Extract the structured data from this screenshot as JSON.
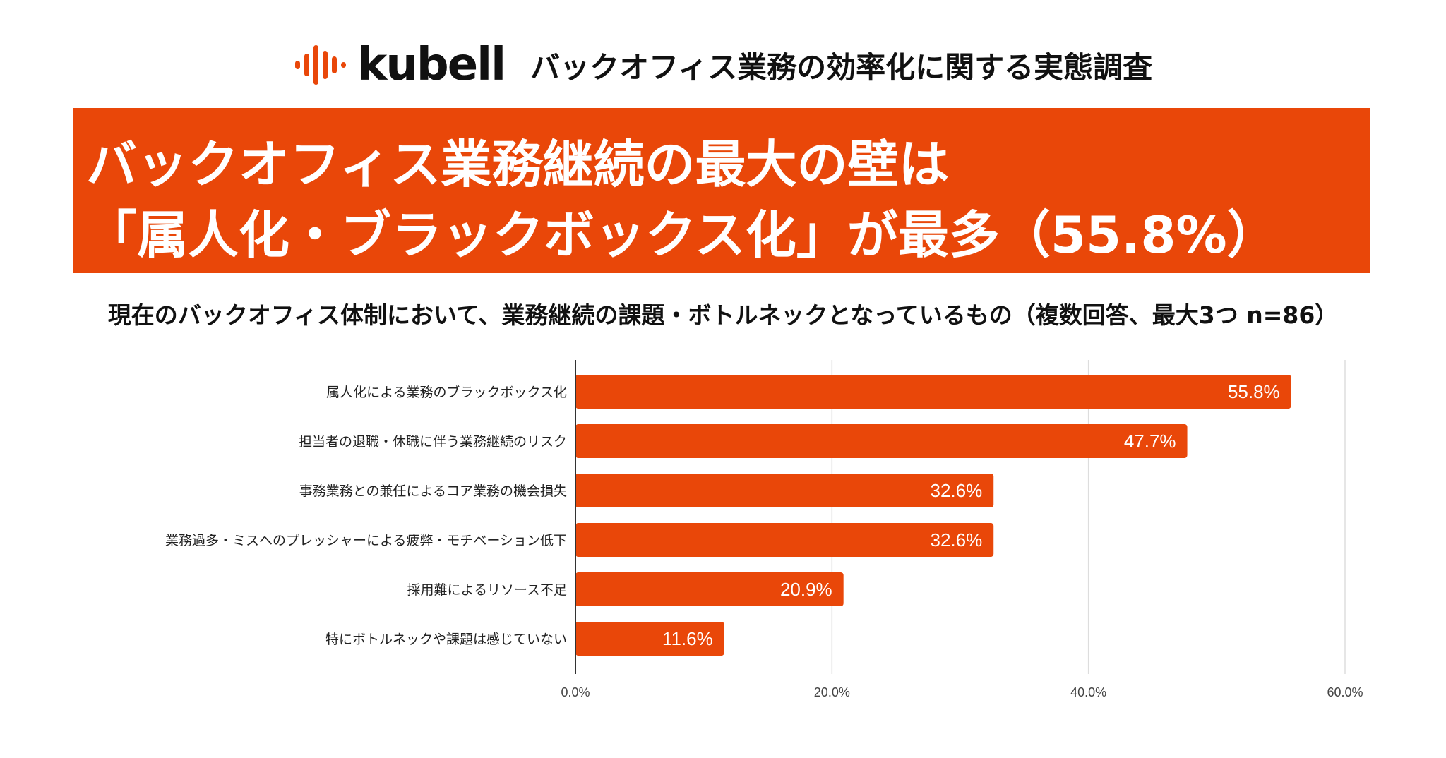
{
  "header": {
    "logo_text": "kubell",
    "survey_title": "バックオフィス業務の効率化に関する実態調査"
  },
  "banner": {
    "line1": "バックオフィス業務継続の最大の壁は",
    "line2": "「属人化・ブラックボックス化」が最多（55.8%）"
  },
  "colors": {
    "accent": "#e94709",
    "grid": "#dddddd",
    "axis": "#333333"
  },
  "chart_data": {
    "type": "bar",
    "orientation": "horizontal",
    "title": "現在のバックオフィス体制において、業務継続の課題・ボトルネックとなっているもの（複数回答、最大3つ n=86）",
    "categories": [
      "属人化による業務のブラックボックス化",
      "担当者の退職・休職に伴う業務継続のリスク",
      "事務業務との兼任によるコア業務の機会損失",
      "業務過多・ミスへのプレッシャーによる疲弊・モチベーション低下",
      "採用難によるリソース不足",
      "特にボトルネックや課題は感じていない"
    ],
    "values": [
      55.8,
      47.7,
      32.6,
      32.6,
      20.9,
      11.6
    ],
    "value_labels": [
      "55.8%",
      "47.7%",
      "32.6%",
      "32.6%",
      "20.9%",
      "11.6%"
    ],
    "xlim": [
      0,
      60
    ],
    "ticks": [
      0,
      20,
      40,
      60
    ],
    "tick_labels": [
      "0.0%",
      "20.0%",
      "40.0%",
      "60.0%"
    ],
    "grid": true,
    "legend": "none"
  }
}
